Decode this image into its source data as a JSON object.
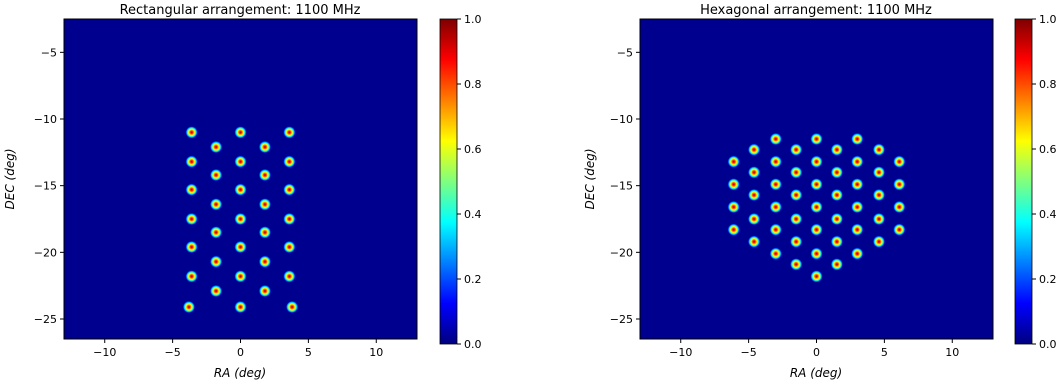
{
  "chart_data": [
    {
      "type": "heatmap",
      "title": "Rectangular arrangement: 1100 MHz",
      "xlabel": "RA (deg)",
      "ylabel": "DEC (deg)",
      "xlim": [
        -13,
        13
      ],
      "ylim": [
        -26.5,
        -2.5
      ],
      "xticks": [
        -10,
        -5,
        0,
        5,
        10
      ],
      "yticks": [
        -5,
        -10,
        -15,
        -20,
        -25
      ],
      "grid": false,
      "background_value": 0.0,
      "beam_peak_value": 1.0,
      "beams": [
        [
          -3.6,
          -11.0
        ],
        [
          0.0,
          -11.0
        ],
        [
          3.6,
          -11.0
        ],
        [
          -1.8,
          -12.1
        ],
        [
          1.8,
          -12.1
        ],
        [
          -3.6,
          -13.2
        ],
        [
          0.0,
          -13.2
        ],
        [
          3.6,
          -13.2
        ],
        [
          -1.8,
          -14.2
        ],
        [
          1.8,
          -14.2
        ],
        [
          -3.6,
          -15.3
        ],
        [
          0.0,
          -15.3
        ],
        [
          3.6,
          -15.3
        ],
        [
          -1.8,
          -16.4
        ],
        [
          1.8,
          -16.4
        ],
        [
          -3.6,
          -17.5
        ],
        [
          0.0,
          -17.5
        ],
        [
          3.6,
          -17.5
        ],
        [
          -1.8,
          -18.5
        ],
        [
          1.8,
          -18.5
        ],
        [
          -3.6,
          -19.6
        ],
        [
          0.0,
          -19.6
        ],
        [
          3.6,
          -19.6
        ],
        [
          -1.8,
          -20.7
        ],
        [
          1.8,
          -20.7
        ],
        [
          -3.6,
          -21.8
        ],
        [
          0.0,
          -21.8
        ],
        [
          3.6,
          -21.8
        ],
        [
          -1.8,
          -22.9
        ],
        [
          1.8,
          -22.9
        ],
        [
          -3.8,
          -24.1
        ],
        [
          0.0,
          -24.1
        ],
        [
          3.8,
          -24.1
        ]
      ],
      "colorbar": {
        "min": 0.0,
        "max": 1.0,
        "ticks": [
          "0.0",
          "0.2",
          "0.4",
          "0.6",
          "0.8",
          "1.0"
        ],
        "colormap": "jet"
      }
    },
    {
      "type": "heatmap",
      "title": "Hexagonal arrangement: 1100 MHz",
      "xlabel": "RA (deg)",
      "ylabel": "DEC (deg)",
      "xlim": [
        -13,
        13
      ],
      "ylim": [
        -26.5,
        -2.5
      ],
      "xticks": [
        -10,
        -5,
        0,
        5,
        10
      ],
      "yticks": [
        -5,
        -10,
        -15,
        -20,
        -25
      ],
      "grid": false,
      "background_value": 0.0,
      "beam_peak_value": 1.0,
      "beams": [
        [
          -3.0,
          -11.5
        ],
        [
          0.0,
          -11.5
        ],
        [
          3.0,
          -11.5
        ],
        [
          -4.6,
          -12.3
        ],
        [
          -1.5,
          -12.3
        ],
        [
          1.5,
          -12.3
        ],
        [
          4.6,
          -12.3
        ],
        [
          -6.1,
          -13.2
        ],
        [
          -3.0,
          -13.2
        ],
        [
          0.0,
          -13.2
        ],
        [
          3.0,
          -13.2
        ],
        [
          6.1,
          -13.2
        ],
        [
          -4.6,
          -14.0
        ],
        [
          -1.5,
          -14.0
        ],
        [
          1.5,
          -14.0
        ],
        [
          4.6,
          -14.0
        ],
        [
          -6.1,
          -14.9
        ],
        [
          -3.0,
          -14.9
        ],
        [
          0.0,
          -14.9
        ],
        [
          3.0,
          -14.9
        ],
        [
          6.1,
          -14.9
        ],
        [
          -4.6,
          -15.7
        ],
        [
          -1.5,
          -15.7
        ],
        [
          1.5,
          -15.7
        ],
        [
          4.6,
          -15.7
        ],
        [
          -6.1,
          -16.6
        ],
        [
          -3.0,
          -16.6
        ],
        [
          0.0,
          -16.6
        ],
        [
          3.0,
          -16.6
        ],
        [
          6.1,
          -16.6
        ],
        [
          -4.6,
          -17.5
        ],
        [
          -1.5,
          -17.5
        ],
        [
          1.5,
          -17.5
        ],
        [
          4.6,
          -17.5
        ],
        [
          -6.1,
          -18.3
        ],
        [
          -3.0,
          -18.3
        ],
        [
          0.0,
          -18.3
        ],
        [
          3.0,
          -18.3
        ],
        [
          6.1,
          -18.3
        ],
        [
          -4.6,
          -19.2
        ],
        [
          -1.5,
          -19.2
        ],
        [
          1.5,
          -19.2
        ],
        [
          4.6,
          -19.2
        ],
        [
          -3.0,
          -20.1
        ],
        [
          0.0,
          -20.1
        ],
        [
          3.0,
          -20.1
        ],
        [
          -1.5,
          -20.9
        ],
        [
          1.5,
          -20.9
        ],
        [
          0.0,
          -21.8
        ]
      ],
      "colorbar": {
        "min": 0.0,
        "max": 1.0,
        "ticks": [
          "0.0",
          "0.2",
          "0.4",
          "0.6",
          "0.8",
          "1.0"
        ],
        "colormap": "jet"
      }
    }
  ],
  "colors": {
    "background": "#00008f",
    "jet_stops": [
      "#00007f",
      "#0000ff",
      "#007fff",
      "#00ffff",
      "#7fff7f",
      "#ffff00",
      "#ff7f00",
      "#ff0000",
      "#7f0000"
    ]
  }
}
